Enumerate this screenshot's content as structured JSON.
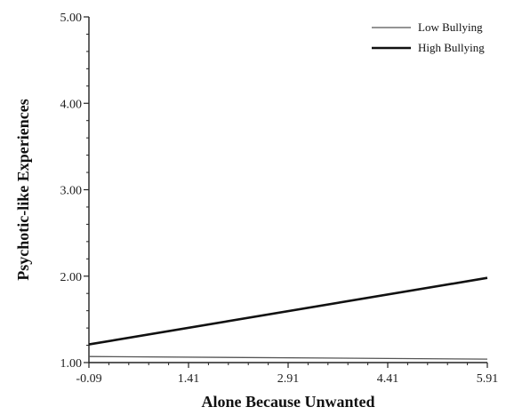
{
  "chart_data": {
    "type": "line",
    "title": "",
    "xlabel": "Alone Because Unwanted",
    "ylabel": "Psychotic-like Experiences",
    "xlim": [
      -0.09,
      5.91
    ],
    "ylim": [
      1.0,
      5.0
    ],
    "x_ticks": [
      "-0.09",
      "1.41",
      "2.91",
      "4.41",
      "5.91"
    ],
    "y_ticks": [
      "1.00",
      "2.00",
      "3.00",
      "4.00",
      "5.00"
    ],
    "grid": false,
    "legend_position": "top-right",
    "series": [
      {
        "name": "Low Bullying",
        "x": [
          -0.09,
          5.91
        ],
        "y": [
          1.07,
          1.04
        ],
        "color": "#555555",
        "stroke": "thin"
      },
      {
        "name": "High Bullying",
        "x": [
          -0.09,
          5.91
        ],
        "y": [
          1.21,
          1.98
        ],
        "color": "#111111",
        "stroke": "thick"
      }
    ]
  }
}
